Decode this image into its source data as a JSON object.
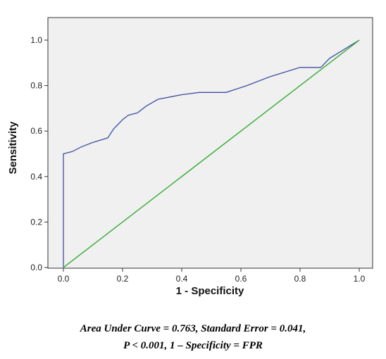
{
  "chart_data": {
    "type": "line",
    "xlabel": "1 - Specificity",
    "ylabel": "Sensitivity",
    "xlim": [
      0,
      1
    ],
    "ylim": [
      0,
      1
    ],
    "xticks": [
      "0.0",
      "0.2",
      "0.4",
      "0.6",
      "0.8",
      "1.0"
    ],
    "yticks": [
      "0.0",
      "0.2",
      "0.4",
      "0.6",
      "0.8",
      "1.0"
    ],
    "grid": false,
    "background": "#f0f0f0",
    "series": [
      {
        "color": "#3f4fa3",
        "x": [
          0.0,
          0.0,
          0.0,
          0.03,
          0.06,
          0.1,
          0.15,
          0.17,
          0.2,
          0.22,
          0.25,
          0.28,
          0.32,
          0.36,
          0.4,
          0.46,
          0.55,
          0.62,
          0.7,
          0.75,
          0.8,
          0.87,
          0.9,
          0.95,
          1.0
        ],
        "y": [
          0.0,
          0.5,
          0.5,
          0.51,
          0.53,
          0.55,
          0.57,
          0.61,
          0.65,
          0.67,
          0.68,
          0.71,
          0.74,
          0.75,
          0.76,
          0.77,
          0.77,
          0.8,
          0.84,
          0.86,
          0.88,
          0.88,
          0.92,
          0.96,
          1.0
        ]
      },
      {
        "color": "#3fae3f",
        "x": [
          0.0,
          1.0
        ],
        "y": [
          0.0,
          1.0
        ]
      }
    ]
  },
  "caption": {
    "line1": "Area Under Curve = 0.763, Standard Error = 0.041,",
    "line2": "P < 0.001, 1 – Specificity = FPR"
  }
}
